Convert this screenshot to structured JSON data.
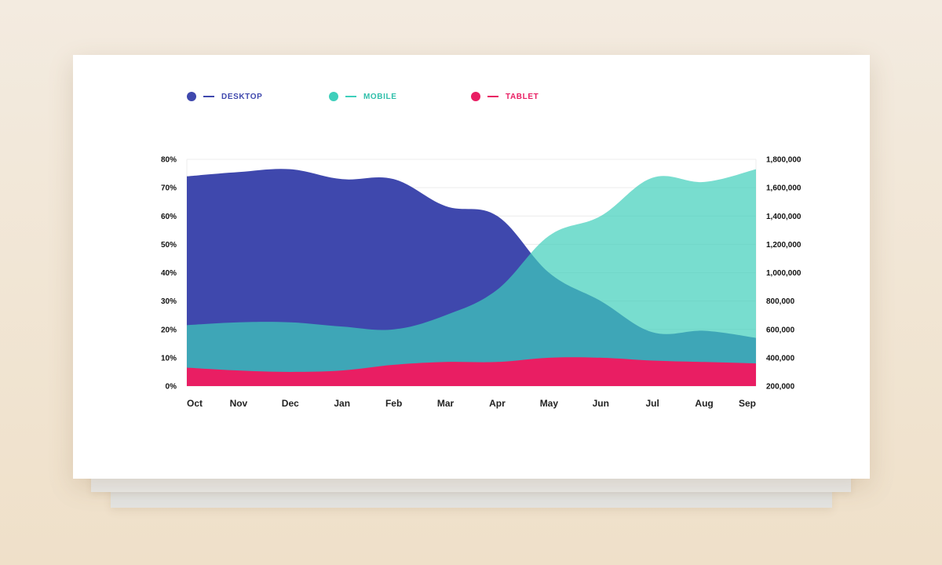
{
  "chart_data": {
    "type": "area",
    "categories": [
      "Oct",
      "Nov",
      "Dec",
      "Jan",
      "Feb",
      "Mar",
      "Apr",
      "May",
      "Jun",
      "Jul",
      "Aug",
      "Sep"
    ],
    "y_left_ticks": [
      "0%",
      "10%",
      "20%",
      "30%",
      "40%",
      "50%",
      "60%",
      "70%",
      "80%"
    ],
    "y_left_range": [
      0,
      80
    ],
    "y_right_ticks": [
      "200,000",
      "400,000",
      "600,000",
      "800,000",
      "1,000,000",
      "1,200,000",
      "1,400,000",
      "1,600,000",
      "1,800,000"
    ],
    "y_right_range": [
      200000,
      1800000
    ],
    "grid": true,
    "legend_position": "top",
    "series": [
      {
        "name": "DESKTOP",
        "color": "#3f48ad",
        "values": [
          74,
          75.5,
          76.5,
          73,
          73,
          63.5,
          60,
          40,
          30,
          19,
          19.5,
          17
        ]
      },
      {
        "name": "MOBILE",
        "color": "#3ecfbb",
        "values": [
          21.5,
          22.5,
          22.5,
          21,
          20,
          25,
          34,
          53,
          60,
          73.5,
          72,
          76.5
        ]
      },
      {
        "name": "TABLET",
        "color": "#e91e63",
        "values": [
          6.5,
          5.5,
          5,
          5.5,
          7.5,
          8.5,
          8.5,
          10,
          10,
          9,
          8.5,
          8
        ]
      }
    ]
  }
}
